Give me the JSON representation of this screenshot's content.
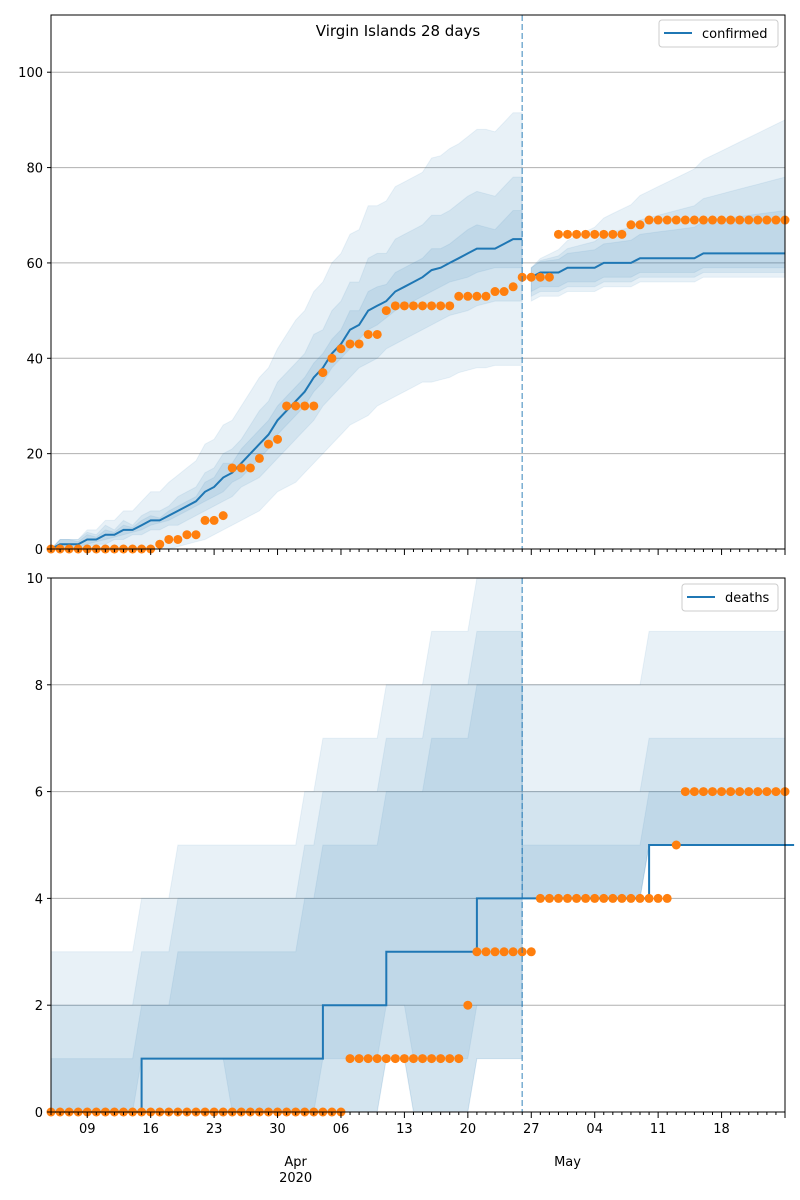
{
  "title": "Virgin Islands 28 days",
  "colors": {
    "line": "#1f77b4",
    "band": "#1f77b4",
    "observed": "#ff7f0e",
    "grid": "#b0b0b0"
  },
  "x_axis": {
    "start_date": "2020-03-05",
    "end_date": "2020-05-25",
    "forecast_start_date": "2020-04-26",
    "tick_labels": [
      "09",
      "16",
      "23",
      "30",
      "06",
      "13",
      "20",
      "27",
      "04",
      "11",
      "18"
    ],
    "month_labels": [
      "Apr\n2020",
      "May"
    ]
  },
  "chart_data": [
    {
      "type": "line",
      "legend": "confirmed",
      "legend_position": "top-right",
      "ylim": [
        0,
        112
      ],
      "yticks": [
        0,
        20,
        40,
        60,
        80,
        100
      ],
      "grid": "y",
      "series": [
        {
          "kind": "model",
          "x_start": "2020-03-05",
          "values": [
            0,
            1,
            1,
            1,
            2,
            2,
            3,
            3,
            4,
            4,
            5,
            6,
            6,
            7,
            8,
            9,
            10,
            12,
            13,
            15,
            16,
            18,
            20,
            22,
            24,
            27,
            29,
            31,
            33,
            36,
            38,
            41,
            43,
            46,
            47,
            50,
            51,
            52,
            54,
            55,
            56,
            57,
            58.5,
            59,
            60,
            61,
            62,
            63,
            63,
            63,
            64,
            65,
            65
          ]
        },
        {
          "kind": "forecast",
          "x_start": "2020-04-27",
          "values": [
            57,
            58,
            58,
            58,
            59,
            59,
            59,
            59,
            60,
            60,
            60,
            60,
            61,
            61,
            61,
            61,
            61,
            61,
            61,
            62,
            62,
            62,
            62,
            62,
            62,
            62,
            62,
            62,
            62
          ]
        },
        {
          "kind": "observed",
          "x_start": "2020-03-05",
          "values": [
            0,
            0,
            0,
            0,
            0,
            0,
            0,
            0,
            0,
            0,
            0,
            0,
            1,
            2,
            2,
            3,
            3,
            6,
            6,
            7,
            17,
            17,
            17,
            19,
            22,
            23,
            30,
            30,
            30,
            30,
            37,
            40,
            42,
            43,
            43,
            45,
            45,
            50,
            51,
            51,
            51,
            51,
            51,
            51,
            51,
            53,
            53,
            53,
            53,
            54,
            54,
            55,
            57,
            57,
            57,
            57,
            66,
            66,
            66,
            66,
            66,
            66,
            66,
            66,
            68,
            68,
            69,
            69,
            69,
            69,
            69,
            69,
            69,
            69,
            69,
            69,
            69,
            69,
            69,
            69,
            69,
            69
          ]
        }
      ],
      "bands": [
        {
          "lower": [
            0,
            0,
            0,
            0,
            0,
            0,
            0,
            0,
            0,
            0,
            0,
            0,
            0,
            0,
            0.5,
            1,
            1.5,
            2,
            3,
            4,
            5,
            6,
            7,
            8,
            10,
            12,
            13,
            14,
            16,
            18,
            20,
            22,
            24,
            26,
            27,
            28,
            30,
            31,
            32,
            33,
            34,
            35,
            35,
            35.5,
            36,
            37,
            37.5,
            38,
            38,
            38.5,
            38.5,
            38.5
          ]
        },
        {
          "lower": [
            0,
            0,
            0,
            0,
            0.5,
            1,
            1,
            2,
            2,
            3,
            3,
            4,
            4,
            5,
            5,
            6,
            7,
            8,
            9,
            10,
            11,
            13,
            14,
            15,
            17,
            19,
            21,
            23,
            25,
            27,
            30,
            32,
            34,
            36,
            38,
            39,
            40,
            42,
            43,
            44,
            45,
            46,
            47,
            48,
            49,
            49.5,
            50,
            51,
            51.5,
            52,
            52,
            52
          ]
        },
        {
          "lower": [
            0,
            0,
            0,
            0.5,
            1,
            1.5,
            2,
            2.5,
            3,
            3.5,
            4,
            5,
            5.5,
            6,
            7,
            8,
            9,
            10,
            11,
            12,
            14,
            15,
            17,
            19,
            21,
            24,
            26,
            28,
            30,
            33,
            35,
            38,
            40,
            42,
            44,
            46,
            47,
            48.5,
            50,
            51,
            52,
            53,
            54,
            55,
            56,
            56.5,
            57,
            58,
            58.5,
            59,
            59,
            59
          ]
        }
      ]
    },
    {
      "type": "line",
      "legend": "deaths",
      "legend_position": "top-right",
      "ylim": [
        0,
        10
      ],
      "yticks": [
        0,
        2,
        4,
        6,
        8,
        10
      ],
      "grid": "y",
      "series": [
        {
          "kind": "model",
          "x_start": "2020-03-05",
          "step_values": [
            [
              5,
              0
            ],
            [
              10,
              1
            ],
            [
              30,
              2
            ],
            [
              37,
              3
            ],
            [
              47,
              4
            ],
            [
              57,
              4
            ],
            [
              66,
              5
            ],
            [
              82,
              5
            ]
          ]
        },
        {
          "kind": "observed",
          "x_start": "2020-03-05",
          "values": [
            0,
            0,
            0,
            0,
            0,
            0,
            0,
            0,
            0,
            0,
            0,
            0,
            0,
            0,
            0,
            0,
            0,
            0,
            0,
            0,
            0,
            0,
            0,
            0,
            0,
            0,
            0,
            0,
            0,
            0,
            0,
            0,
            0,
            1,
            1,
            1,
            1,
            1,
            1,
            1,
            1,
            1,
            1,
            1,
            1,
            1,
            2,
            3,
            3,
            3,
            3,
            3,
            3,
            3,
            4,
            4,
            4,
            4,
            4,
            4,
            4,
            4,
            4,
            4,
            4,
            4,
            4,
            4,
            4,
            5,
            6,
            6,
            6,
            6,
            6,
            6,
            6,
            6,
            6,
            6,
            6,
            6
          ]
        }
      ]
    }
  ]
}
